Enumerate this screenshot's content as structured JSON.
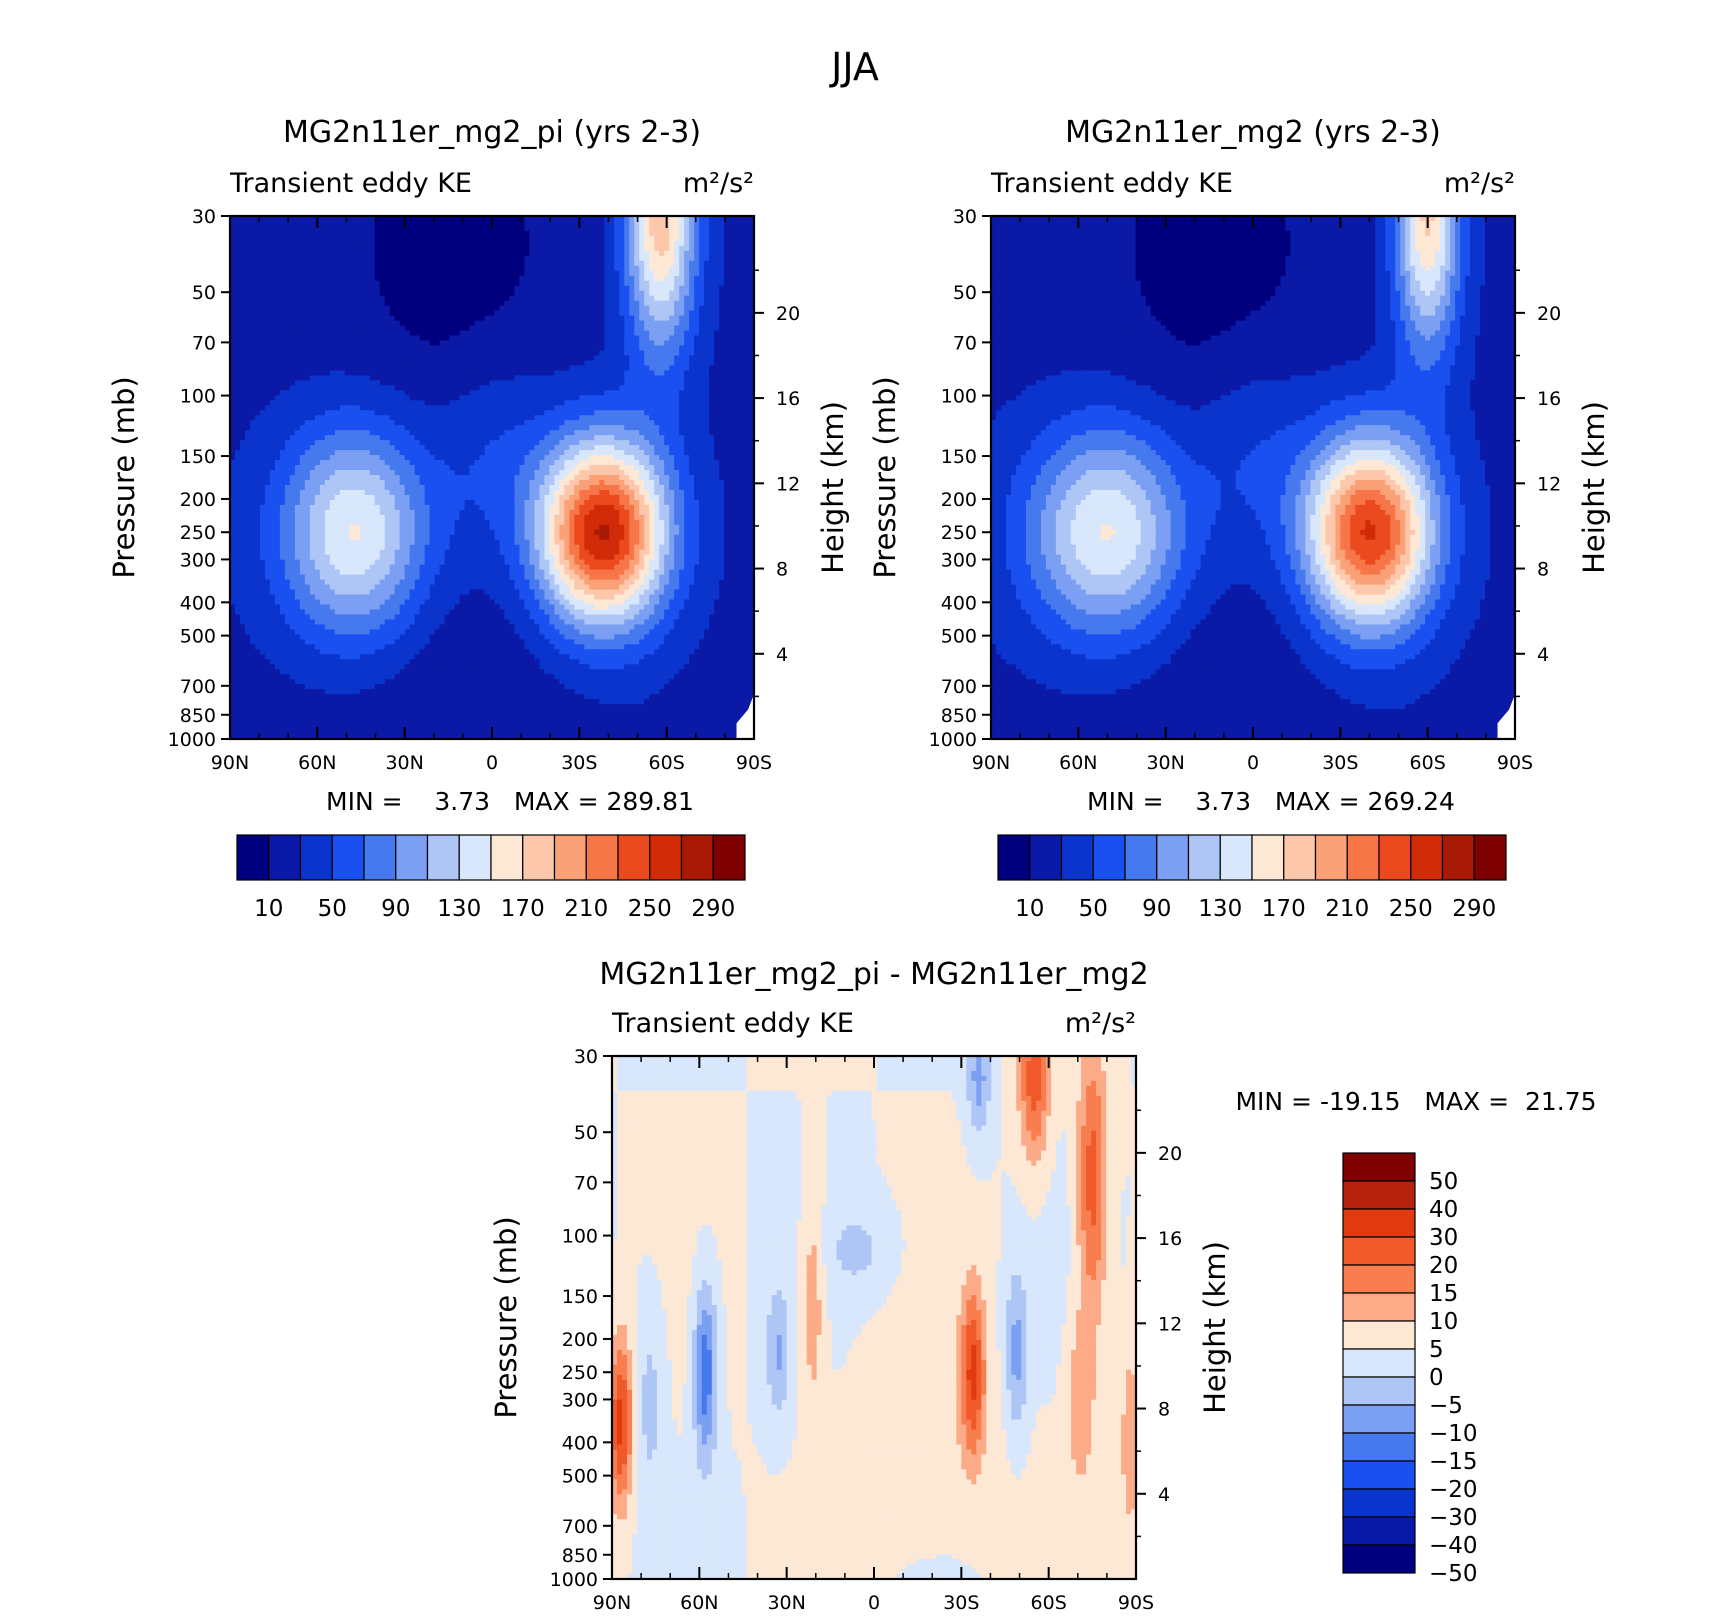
{
  "page_title": "JJA",
  "chart_data": [
    {
      "type": "heatmap",
      "title": "MG2n11er_mg2_pi (yrs 2-3)",
      "subtitle_left": "Transient eddy KE",
      "units": "m²/s²",
      "ylabel_left": "Pressure (mb)",
      "ylabel_right": "Height (km)",
      "stats_text": "MIN =    3.73   MAX = 289.81",
      "x_ticks": [
        "90N",
        "60N",
        "30N",
        "0",
        "30S",
        "60S",
        "90S"
      ],
      "y_ticks_pressure": [
        30,
        50,
        70,
        100,
        150,
        200,
        250,
        300,
        400,
        500,
        700,
        850,
        1000
      ],
      "y_ticks_height_km": [
        20,
        16,
        12,
        8,
        4
      ],
      "colorbar_labels": [
        "10",
        "50",
        "90",
        "130",
        "170",
        "210",
        "250",
        "290"
      ],
      "colors": [
        "#00007f",
        "#0a1aa6",
        "#0a34cc",
        "#1a50f0",
        "#4678ee",
        "#7b9ff2",
        "#aec6f6",
        "#d8e7fb",
        "#fde8d6",
        "#fcc7ab",
        "#fba177",
        "#f67648",
        "#eb4a1e",
        "#d12b08",
        "#a81a06",
        "#7f0000"
      ],
      "features": [
        {
          "name": "NH jet maximum",
          "lat": -47,
          "pressure": 250,
          "value": 175
        },
        {
          "name": "SH jet maximum",
          "lat": 33,
          "pressure": 250,
          "value": 289.81
        },
        {
          "name": "SH stratospheric maximum",
          "lat": 58,
          "pressure": 30,
          "value": 170
        }
      ]
    },
    {
      "type": "heatmap",
      "title": "MG2n11er_mg2 (yrs 2-3)",
      "subtitle_left": "Transient eddy KE",
      "units": "m²/s²",
      "ylabel_left": "Pressure (mb)",
      "ylabel_right": "Height (km)",
      "stats_text": "MIN =    3.73   MAX = 269.24",
      "x_ticks": [
        "90N",
        "60N",
        "30N",
        "0",
        "30S",
        "60S",
        "90S"
      ],
      "y_ticks_pressure": [
        30,
        50,
        70,
        100,
        150,
        200,
        250,
        300,
        400,
        500,
        700,
        850,
        1000
      ],
      "y_ticks_height_km": [
        20,
        16,
        12,
        8,
        4
      ],
      "colorbar_labels": [
        "10",
        "50",
        "90",
        "130",
        "170",
        "210",
        "250",
        "290"
      ],
      "colors": [
        "#00007f",
        "#0a1aa6",
        "#0a34cc",
        "#1a50f0",
        "#4678ee",
        "#7b9ff2",
        "#aec6f6",
        "#d8e7fb",
        "#fde8d6",
        "#fcc7ab",
        "#fba177",
        "#f67648",
        "#eb4a1e",
        "#d12b08",
        "#a81a06",
        "#7f0000"
      ],
      "features": [
        {
          "name": "NH jet maximum",
          "lat": -52,
          "pressure": 250,
          "value": 170
        },
        {
          "name": "SH jet maximum",
          "lat": 38,
          "pressure": 250,
          "value": 269.24
        },
        {
          "name": "SH stratospheric maximum",
          "lat": 60,
          "pressure": 30,
          "value": 165
        }
      ]
    },
    {
      "type": "heatmap",
      "title": "MG2n11er_mg2_pi - MG2n11er_mg2",
      "subtitle_left": "Transient eddy KE",
      "units": "m²/s²",
      "ylabel_left": "Pressure (mb)",
      "ylabel_right": "Height (km)",
      "stats_text": "MIN = -19.15   MAX =  21.75",
      "x_ticks": [
        "90N",
        "60N",
        "30N",
        "0",
        "30S",
        "60S",
        "90S"
      ],
      "y_ticks_pressure": [
        30,
        50,
        70,
        100,
        150,
        200,
        250,
        300,
        400,
        500,
        700,
        850,
        1000
      ],
      "y_ticks_height_km": [
        20,
        16,
        12,
        8,
        4
      ],
      "colorbar_labels": [
        "50",
        "40",
        "30",
        "20",
        "15",
        "10",
        "5",
        "0",
        "−5",
        "−10",
        "−15",
        "−20",
        "−30",
        "−40",
        "−50"
      ],
      "colors": [
        "#7f0000",
        "#b5220c",
        "#e03a0e",
        "#f05a2a",
        "#f87e4f",
        "#fbab87",
        "#fde8d6",
        "#d8e7fb",
        "#aec6f6",
        "#7b9ff2",
        "#4678ee",
        "#1a50f0",
        "#0a34cc",
        "#0a1aa6",
        "#00007f"
      ],
      "features": [
        {
          "name": "positive anomaly",
          "lat": -87,
          "pressure": 350,
          "value": 21.75
        },
        {
          "name": "negative anomaly",
          "lat": -58,
          "pressure": 250,
          "value": -19.15
        },
        {
          "name": "positive anomaly",
          "lat": 34,
          "pressure": 250,
          "value": 20
        },
        {
          "name": "positive anomaly",
          "lat": 55,
          "pressure": 35,
          "value": 18
        },
        {
          "name": "positive anomaly",
          "lat": 75,
          "pressure": 70,
          "value": 18
        },
        {
          "name": "negative anomaly",
          "lat": 36,
          "pressure": 35,
          "value": -12
        }
      ]
    }
  ]
}
